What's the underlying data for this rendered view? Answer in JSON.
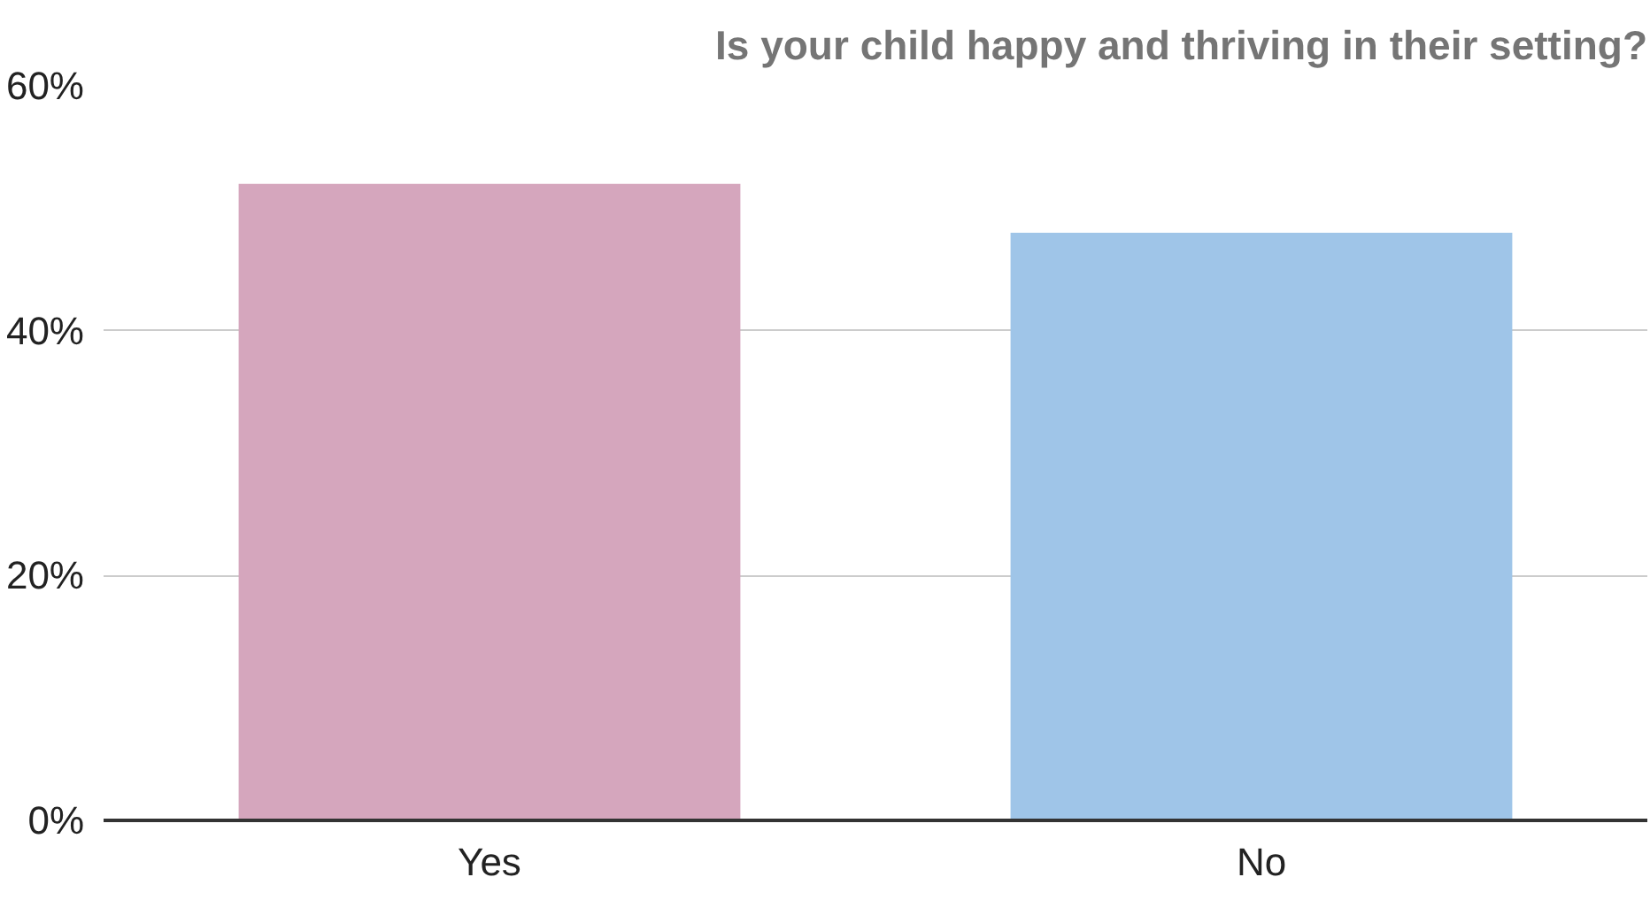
{
  "chart_data": {
    "type": "bar",
    "title": "Is your child happy and thriving in their setting?",
    "categories": [
      "Yes",
      "No"
    ],
    "values": [
      52,
      48
    ],
    "colors": [
      "#d5a6bd",
      "#9fc5e8"
    ],
    "ylim": [
      0,
      60
    ],
    "yticks": [
      {
        "value": 0,
        "label": "0%"
      },
      {
        "value": 20,
        "label": "20%"
      },
      {
        "value": 40,
        "label": "40%"
      },
      {
        "value": 60,
        "label": "60%"
      }
    ],
    "grid": "y"
  }
}
